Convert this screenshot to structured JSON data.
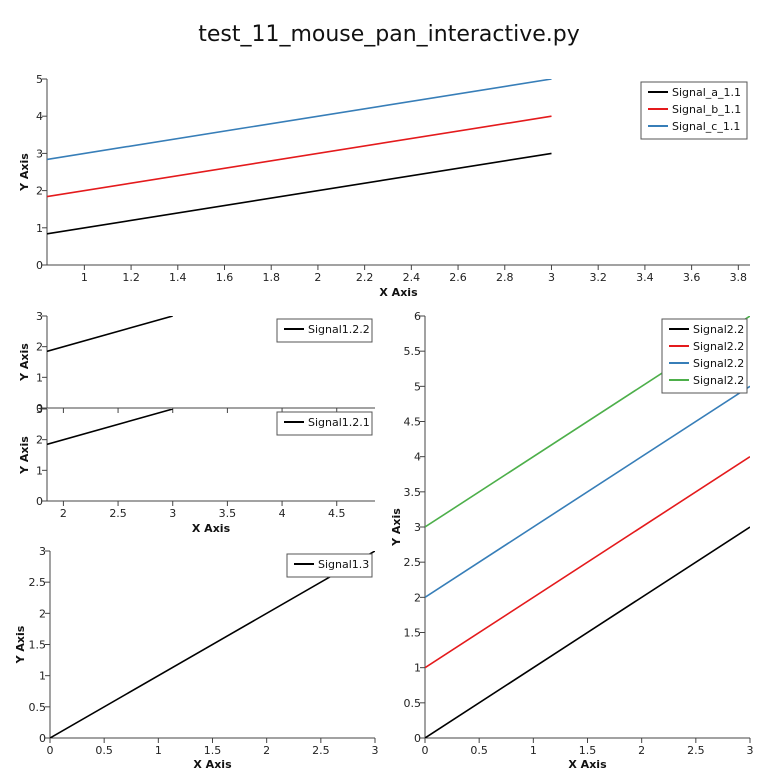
{
  "window": {
    "title": "test_11_mouse_pan_interactive.py"
  },
  "colors": {
    "black": "#000000",
    "red": "#e41a1c",
    "blue": "#377eb8",
    "green": "#4daf4a"
  },
  "chart_data": [
    {
      "id": "plot-1-1",
      "type": "line",
      "xlabel": "X Axis",
      "ylabel": "Y Axis",
      "xlim": [
        0.84,
        3.85
      ],
      "ylim": [
        0,
        5
      ],
      "xticks": [
        1,
        1.2,
        1.4,
        1.6,
        1.8,
        2,
        2.2,
        2.4,
        2.6,
        2.8,
        3,
        3.2,
        3.4,
        3.6,
        3.8
      ],
      "yticks": [
        0,
        1,
        2,
        3,
        4,
        5
      ],
      "legend": "top-right",
      "legend_rows": 3,
      "series": [
        {
          "name": "Signal_a_1.1",
          "color": "#000000",
          "x": [
            0.84,
            3
          ],
          "y": [
            0.84,
            3
          ]
        },
        {
          "name": "Signal_b_1.1",
          "color": "#e41a1c",
          "x": [
            0.84,
            3
          ],
          "y": [
            1.84,
            4
          ]
        },
        {
          "name": "Signal_c_1.1",
          "color": "#377eb8",
          "x": [
            0.84,
            3
          ],
          "y": [
            2.84,
            5
          ]
        }
      ]
    },
    {
      "id": "plot-1-2-2",
      "type": "line",
      "xlabel": "",
      "ylabel": "Y Axis",
      "xlim": [
        1.85,
        4.85
      ],
      "ylim": [
        0,
        3
      ],
      "xticks": [
        2,
        2.5,
        3,
        3.5,
        4,
        4.5
      ],
      "xticklabels_hidden": true,
      "yticks": [
        0,
        1,
        2,
        3
      ],
      "legend": "top-right",
      "legend_rows": 1,
      "series": [
        {
          "name": "Signal1.2.2",
          "color": "#000000",
          "x": [
            1.85,
            3
          ],
          "y": [
            1.85,
            3
          ]
        }
      ]
    },
    {
      "id": "plot-1-2-1",
      "type": "line",
      "xlabel": "X Axis",
      "ylabel": "Y Axis",
      "xlim": [
        1.85,
        4.85
      ],
      "ylim": [
        0,
        3
      ],
      "xticks": [
        2,
        2.5,
        3,
        3.5,
        4,
        4.5
      ],
      "yticks": [
        0,
        1,
        2,
        3
      ],
      "legend": "top-right",
      "legend_rows": 1,
      "series": [
        {
          "name": "Signal1.2.1",
          "color": "#000000",
          "x": [
            1.85,
            3
          ],
          "y": [
            1.85,
            3
          ]
        }
      ]
    },
    {
      "id": "plot-1-3",
      "type": "line",
      "xlabel": "X Axis",
      "ylabel": "Y Axis",
      "xlim": [
        0,
        3
      ],
      "ylim": [
        0,
        3
      ],
      "xticks": [
        0,
        0.5,
        1,
        1.5,
        2,
        2.5,
        3
      ],
      "yticks": [
        0,
        0.5,
        1,
        1.5,
        2,
        2.5,
        3
      ],
      "legend": "top-right",
      "legend_rows": 1,
      "series": [
        {
          "name": "Signal1.3",
          "color": "#000000",
          "x": [
            0,
            3
          ],
          "y": [
            0,
            3
          ]
        }
      ]
    },
    {
      "id": "plot-2-2",
      "type": "line",
      "xlabel": "X Axis",
      "ylabel": "Y Axis",
      "xlim": [
        0,
        3
      ],
      "ylim": [
        0,
        6
      ],
      "xticks": [
        0,
        0.5,
        1,
        1.5,
        2,
        2.5,
        3
      ],
      "yticks": [
        0,
        0.5,
        1,
        1.5,
        2,
        2.5,
        3,
        3.5,
        4,
        4.5,
        5,
        5.5,
        6
      ],
      "legend": "top-right",
      "legend_rows": 4,
      "series": [
        {
          "name": "Signal2.2",
          "color": "#000000",
          "x": [
            0,
            3
          ],
          "y": [
            0,
            3
          ]
        },
        {
          "name": "Signal2.2",
          "color": "#e41a1c",
          "x": [
            0,
            3
          ],
          "y": [
            1,
            4
          ]
        },
        {
          "name": "Signal2.2",
          "color": "#377eb8",
          "x": [
            0,
            3
          ],
          "y": [
            2,
            5
          ]
        },
        {
          "name": "Signal2.2",
          "color": "#4daf4a",
          "x": [
            0,
            3
          ],
          "y": [
            3,
            6
          ]
        }
      ]
    }
  ]
}
